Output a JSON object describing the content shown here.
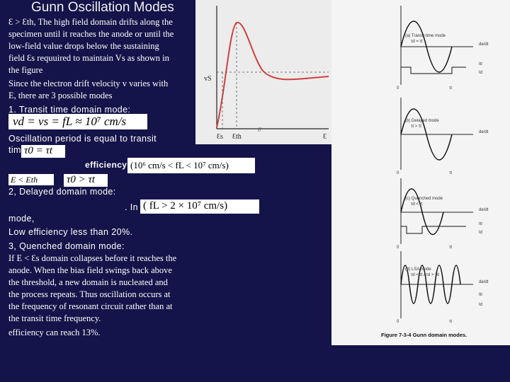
{
  "slide": {
    "title": "Gunn Oscillation Modes",
    "intro_lines": [
      "Ɛ > Ɛth, The high field domain drifts along the",
      "specimen until it reaches the anode or until the",
      "low-field value drops below the sustaining",
      "field Ɛs requuired to maintain Vs as shown in",
      "the figure",
      "Since the electron drift velocity v varies with",
      "E, there are 3 possible modes"
    ],
    "mode1_heading": "1.   Transit time domain mode:",
    "eq1": "vd = vs = fL ≈ 10⁷ cm/s",
    "mode1_period_lines": [
      "Oscillation period is equal to transit",
      "time"
    ],
    "eq_tau0": "τ0 = τt",
    "efficiency_label": "efficiency",
    "eq_range": "(10⁶ cm/s < fL < 10⁷ cm/s)",
    "cond_e": "E < Eth",
    "eq_tau_gt": "τ0 > τt",
    "mode2_heading": "2, Delayed domain mode:",
    "mode2_fragment": ". In",
    "eq_delayed": "( fL > 2 × 10⁷ cm/s)",
    "mode2_lines": [
      "mode,",
      "Low efficiency less than 20%."
    ],
    "mode3_heading": "3, Quenched domain mode:",
    "mode3_lines": [
      "If E < Ɛs domain collapses before it reaches the",
      "anode. When the bias field swings back above",
      "the threshold, a new domain is nucleated and",
      "the process repeats. Thus oscillation occurs at",
      "the frequency of resonant circuit rather than at",
      "the transit time frequency.",
      "efficiency can reach 13%."
    ]
  },
  "velocity_figure": {
    "y_label": "vS",
    "x_labels": [
      "Ɛs",
      "Ɛth",
      "Ɛ"
    ],
    "break_mark": "//"
  },
  "modes_figure": {
    "panels": [
      {
        "label": "(a) Transit-time mode",
        "sub": "τd = τt",
        "right_labels": [
          "de/dt",
          "Itr",
          "Id"
        ],
        "axis_labels": [
          "0",
          "τt"
        ]
      },
      {
        "label": "(b) Delayed mode",
        "sub": "τt > τt",
        "right_labels": [
          "de/dt"
        ],
        "axis_labels": [
          "0",
          "τt"
        ]
      },
      {
        "label": "(c) Quenched mode",
        "sub": "τd < τt",
        "right_labels": [
          "de/dt",
          "Itr",
          "Id"
        ],
        "axis_labels": [
          "0",
          "τt"
        ]
      },
      {
        "label": "(d) LSA mode",
        "sub": "τd < τt / τd > τd",
        "right_labels": [
          "de/dt",
          "Itr",
          "Id"
        ],
        "axis_labels": [
          "0",
          "τt"
        ]
      }
    ],
    "caption": "Figure 7-3-4   Gunn domain modes."
  },
  "colors": {
    "background": "#14144a",
    "curve": "#d04040"
  }
}
